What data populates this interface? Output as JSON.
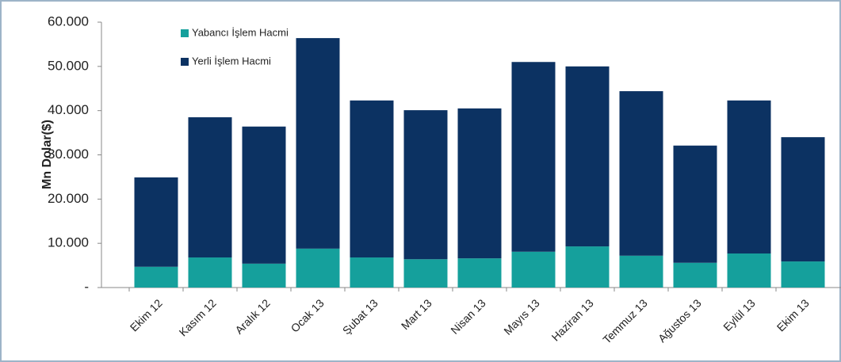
{
  "chart_data": {
    "type": "stacked_bar",
    "y_label": "Mn Dolar($)",
    "categories": [
      "Ekim 12",
      "Kasım 12",
      "Aralık 12",
      "Ocak 13",
      "Şubat 13",
      "Mart 13",
      "Nisan 13",
      "Mayıs 13",
      "Haziran 13",
      "Temmuz 13",
      "Ağustos 13",
      "Eylül 13",
      "Ekim 13"
    ],
    "series": [
      {
        "name": "Yabancı İşlem Hacmi",
        "color": "#15a09c",
        "values": [
          4700,
          6800,
          5400,
          8800,
          6800,
          6400,
          6600,
          8100,
          9300,
          7200,
          5600,
          7700,
          5900
        ]
      },
      {
        "name": "Yerli İşlem Hacmi",
        "color": "#0c3262",
        "values": [
          20200,
          31700,
          31000,
          47600,
          35500,
          33700,
          33900,
          42900,
          40700,
          37200,
          26500,
          34600,
          28100
        ]
      }
    ],
    "ylim": [
      0,
      60000
    ],
    "yticks": [
      {
        "value": 0,
        "label": "-"
      },
      {
        "value": 10000,
        "label": "10.000"
      },
      {
        "value": 20000,
        "label": "20.000"
      },
      {
        "value": 30000,
        "label": "30.000"
      },
      {
        "value": 40000,
        "label": "40.000"
      },
      {
        "value": 50000,
        "label": "50.000"
      },
      {
        "value": 60000,
        "label": "60.000"
      }
    ],
    "grid": false,
    "legend": "upper left"
  }
}
